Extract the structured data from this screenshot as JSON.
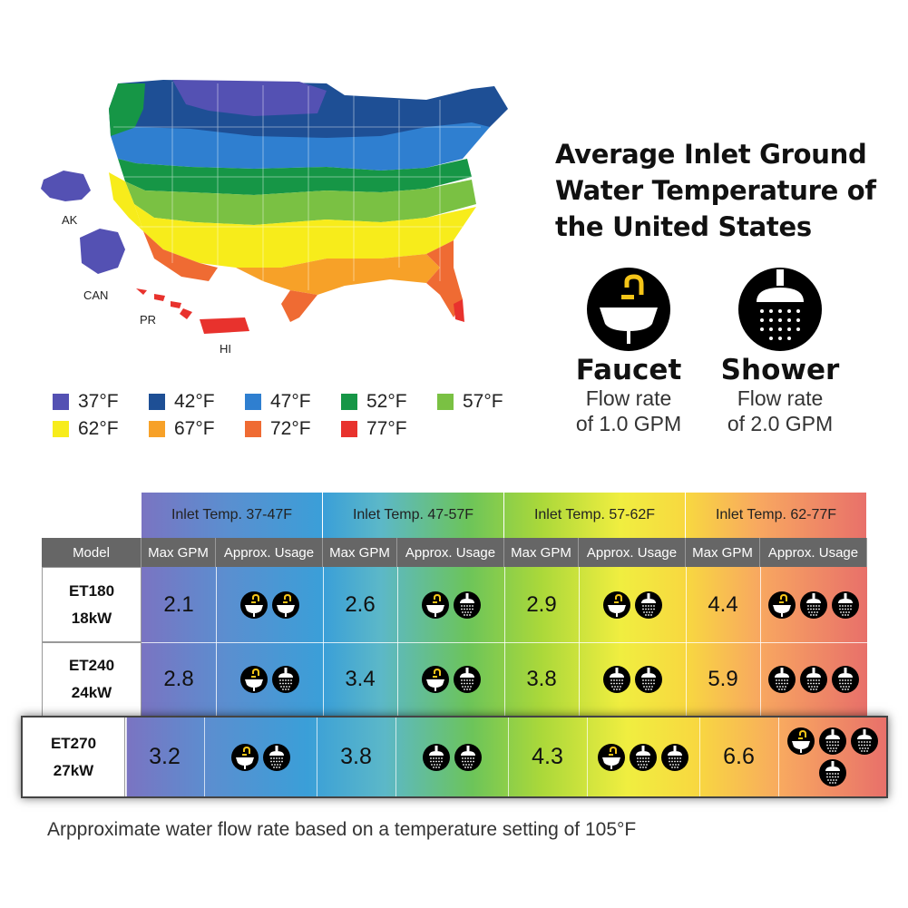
{
  "map": {
    "labels": {
      "ak": "AK",
      "can": "CAN",
      "pr": "PR",
      "hi": "HI"
    }
  },
  "legend": [
    {
      "label": "37°F",
      "color": "#5451b3"
    },
    {
      "label": "42°F",
      "color": "#1e4f95"
    },
    {
      "label": "47°F",
      "color": "#2f7fd0"
    },
    {
      "label": "52°F",
      "color": "#169646"
    },
    {
      "label": "57°F",
      "color": "#7ac143"
    },
    {
      "label": "62°F",
      "color": "#f7ec1b"
    },
    {
      "label": "67°F",
      "color": "#f7a128"
    },
    {
      "label": "72°F",
      "color": "#ef6b33"
    },
    {
      "label": "77°F",
      "color": "#e8322d"
    }
  ],
  "title": {
    "line1": "Average Inlet Ground",
    "line2": "Water Temperature of",
    "line3": "the United States"
  },
  "faucet": {
    "name": "Faucet",
    "line1": "Flow rate",
    "line2": "of 1.0 GPM",
    "icon": "faucet-sink-icon"
  },
  "shower": {
    "name": "Shower",
    "line1": "Flow rate",
    "line2": "of 2.0 GPM",
    "icon": "shower-head-icon"
  },
  "table": {
    "temp_headers": [
      "Inlet Temp. 37-47F",
      "Inlet Temp. 47-57F",
      "Inlet Temp. 57-62F",
      "Inlet Temp. 62-77F"
    ],
    "model_header": "Model",
    "max_gpm_header": "Max GPM",
    "usage_header": "Approx. Usage",
    "rows": [
      {
        "model": "ET180",
        "power": "18kW",
        "gpm": [
          "2.1",
          "2.6",
          "2.9",
          "4.4"
        ],
        "usage": [
          [
            "faucet",
            "faucet"
          ],
          [
            "faucet",
            "shower"
          ],
          [
            "faucet",
            "shower"
          ],
          [
            "faucet",
            "shower",
            "shower"
          ]
        ]
      },
      {
        "model": "ET240",
        "power": "24kW",
        "gpm": [
          "2.8",
          "3.4",
          "3.8",
          "5.9"
        ],
        "usage": [
          [
            "faucet",
            "shower"
          ],
          [
            "faucet",
            "shower"
          ],
          [
            "shower",
            "shower"
          ],
          [
            "shower",
            "shower",
            "shower"
          ]
        ]
      },
      {
        "model": "ET270",
        "power": "27kW",
        "gpm": [
          "3.2",
          "3.8",
          "4.3",
          "6.6"
        ],
        "usage": [
          [
            "faucet",
            "shower"
          ],
          [
            "shower",
            "shower"
          ],
          [
            "faucet",
            "shower",
            "shower"
          ],
          [
            "faucet",
            "shower",
            "shower",
            "shower"
          ]
        ]
      }
    ]
  },
  "footnote": "Arpproximate water flow rate based on a temperature setting of 105°F"
}
